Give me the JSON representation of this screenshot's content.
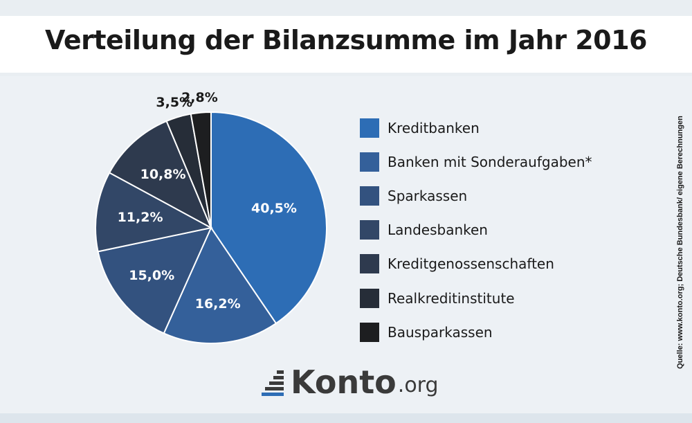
{
  "title": "Verteilung der Bilanzsumme im Jahr 2016",
  "source": "Quelle: www.konto.org; Deutsche Bundesbank/ eigene Berechnungen",
  "logo": {
    "brand": "Konto",
    "tld": ".org",
    "icon": "stacked-bars-icon"
  },
  "colors": {
    "background": "#edf1f5",
    "title_band": "#ffffff",
    "slice_border": "#ffffff"
  },
  "chart_data": {
    "type": "pie",
    "title": "Verteilung der Bilanzsumme im Jahr 2016",
    "legend_position": "right",
    "start": "top, clockwise",
    "slices": [
      {
        "label": "Kreditbanken",
        "value": 40.5,
        "display": "40,5%",
        "color": "#2d6db5"
      },
      {
        "label": "Banken mit Sonderaufgaben*",
        "value": 16.2,
        "display": "16,2%",
        "color": "#34609a"
      },
      {
        "label": "Sparkassen",
        "value": 15.0,
        "display": "15,0%",
        "color": "#33527f"
      },
      {
        "label": "Landesbanken",
        "value": 11.2,
        "display": "11,2%",
        "color": "#324767"
      },
      {
        "label": "Kreditgenossenschaften",
        "value": 10.8,
        "display": "10,8%",
        "color": "#2e3a4e"
      },
      {
        "label": "Realkreditinstitute",
        "value": 3.5,
        "display": "3,5%",
        "color": "#262d38"
      },
      {
        "label": "Bausparkassen",
        "value": 2.8,
        "display": "2,8%",
        "color": "#1d1e20"
      }
    ]
  }
}
